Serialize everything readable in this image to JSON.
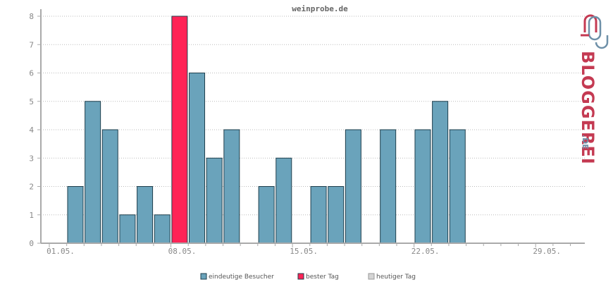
{
  "chart_data": {
    "type": "bar",
    "title": "weinprobe.de",
    "days": [
      "01.05.",
      "02.05.",
      "03.05.",
      "04.05.",
      "05.05.",
      "06.05.",
      "07.05.",
      "08.05.",
      "09.05.",
      "10.05.",
      "11.05.",
      "12.05.",
      "13.05.",
      "14.05.",
      "15.05.",
      "16.05.",
      "17.05.",
      "18.05.",
      "19.05.",
      "20.05.",
      "21.05.",
      "22.05.",
      "23.05.",
      "24.05.",
      "25.05.",
      "26.05.",
      "27.05.",
      "28.05.",
      "29.05.",
      "30.05.",
      "31.05."
    ],
    "values": [
      0,
      2,
      5,
      4,
      1,
      2,
      1,
      8,
      6,
      3,
      4,
      0,
      2,
      3,
      0,
      2,
      2,
      4,
      0,
      4,
      0,
      4,
      5,
      4,
      0,
      0,
      0,
      0,
      0,
      0,
      0
    ],
    "best_day": "08.05.",
    "x_tick_labels": [
      "01.05.",
      "08.05.",
      "15.05.",
      "22.05.",
      "29.05."
    ],
    "ylim": [
      0,
      8
    ],
    "y_ticks": [
      0,
      1,
      2,
      3,
      4,
      5,
      6,
      7,
      8
    ],
    "grid": true,
    "legend_position": "bottom",
    "legend": [
      {
        "label": "eindeutige Besucher",
        "color": "#6aa3bb"
      },
      {
        "label": "bester Tag",
        "color": "#ff2356"
      },
      {
        "label": "heutiger Tag",
        "color": "#d4d4d4"
      }
    ],
    "colors": {
      "normal": "#6aa3bb",
      "best": "#ff2356",
      "today": "#d4d4d4",
      "bar_stroke": "#1f3f4d"
    }
  },
  "logo": {
    "text": "BLOGGEREI",
    "tld": ".DE",
    "colors": {
      "primary": "#c43a52",
      "secondary": "#6e90a8"
    }
  }
}
